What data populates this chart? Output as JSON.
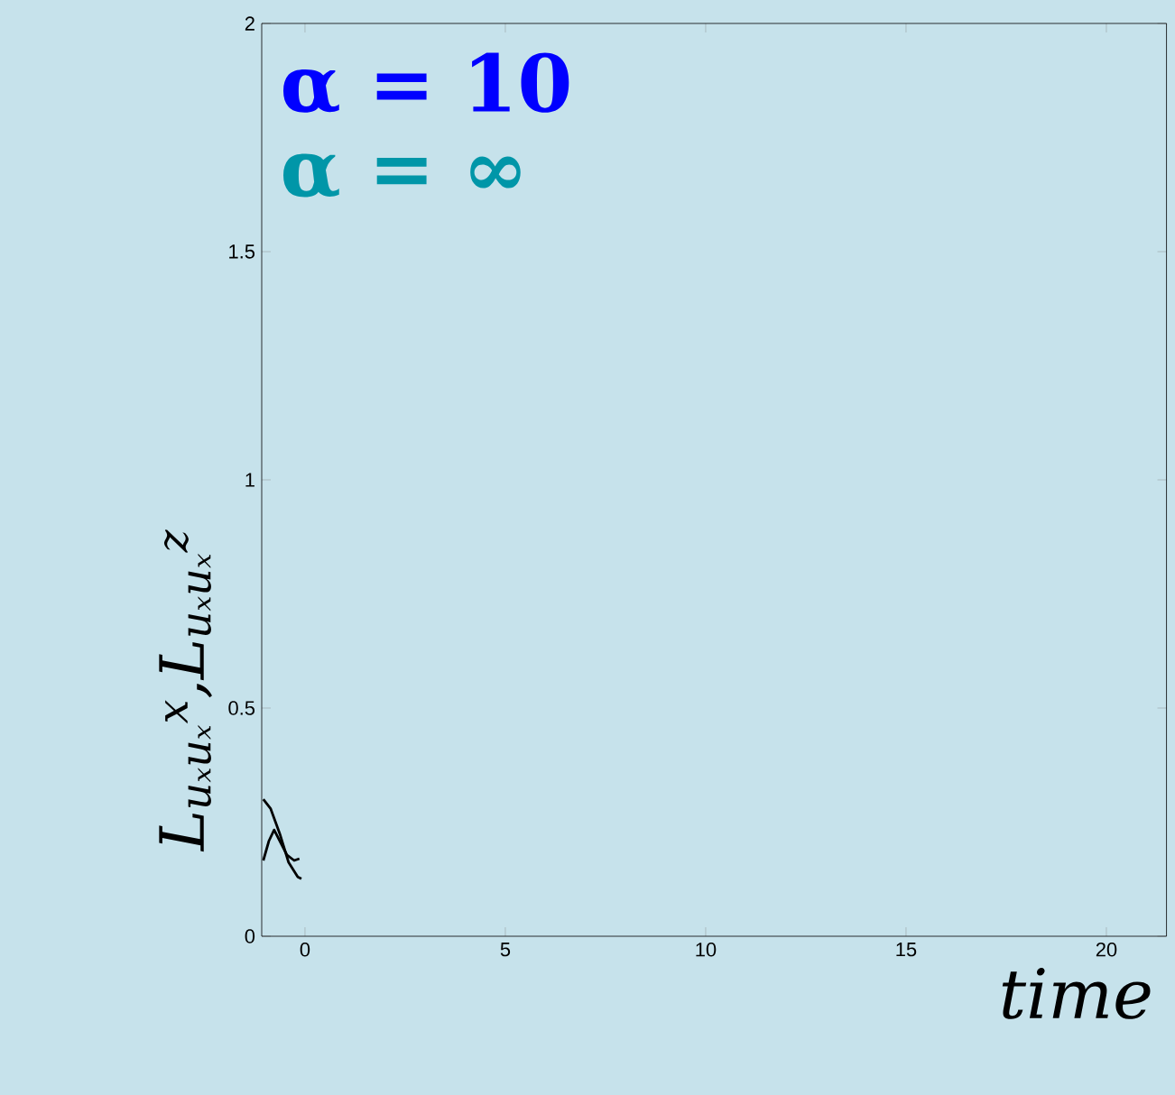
{
  "chart_data": {
    "type": "line",
    "xlabel": "time",
    "ylabel": "L$_{uₓuₓ}$$^{x}$,L$_{uₓuₓ}$$^{z}$",
    "annotations": [
      "α = 10",
      "α = ∞"
    ],
    "xlim": [
      -1.08,
      21.5
    ],
    "ylim": [
      0,
      2
    ],
    "xticks": [
      0,
      5,
      10,
      15,
      20
    ],
    "yticks": [
      0,
      0.5,
      1,
      1.5,
      2
    ],
    "grid": false,
    "series": [
      {
        "color": "#000000",
        "x": [
          -1.04,
          -0.86,
          -0.63,
          -0.41,
          -0.18,
          -0.09
        ],
        "values": [
          0.3,
          0.28,
          0.225,
          0.162,
          0.13,
          0.126
        ]
      },
      {
        "color": "#000000",
        "x": [
          -1.04,
          -0.9,
          -0.77,
          -0.63,
          -0.45,
          -0.27,
          -0.14
        ],
        "values": [
          0.166,
          0.209,
          0.233,
          0.209,
          0.178,
          0.166,
          0.17
        ]
      }
    ]
  }
}
